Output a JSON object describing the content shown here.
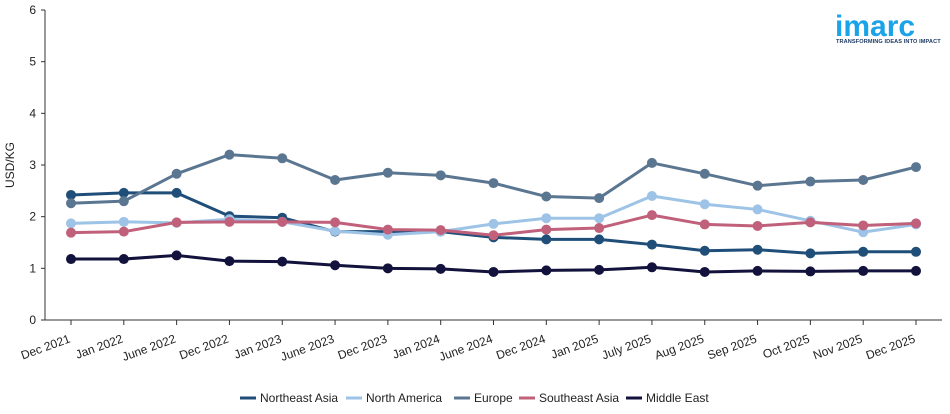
{
  "brand": {
    "name": "imarc",
    "tagline": "TRANSFORMING IDEAS INTO IMPACT",
    "color": "#1aa3e8"
  },
  "chart_data": {
    "type": "line",
    "title": "",
    "xlabel": "",
    "ylabel": "USD/KG",
    "ylim": [
      0,
      6
    ],
    "yticks": [
      0,
      1,
      2,
      3,
      4,
      5,
      6
    ],
    "grid": false,
    "legend_position": "bottom",
    "categories": [
      "Dec 2021",
      "Jan 2022",
      "June 2022",
      "Dec 2022",
      "Jan 2023",
      "June 2023",
      "Dec 2023",
      "Jan 2024",
      "June 2024",
      "Dec 2024",
      "Jan 2025",
      "July 2025",
      "Aug 2025",
      "Sep 2025",
      "Oct 2025",
      "Nov 2025",
      "Dec 2025"
    ],
    "series": [
      {
        "name": "Northeast Asia",
        "color": "#1f4e79",
        "values": [
          2.42,
          2.46,
          2.46,
          2.01,
          1.98,
          1.71,
          1.71,
          1.71,
          1.6,
          1.56,
          1.56,
          1.46,
          1.34,
          1.36,
          1.29,
          1.32,
          1.32
        ]
      },
      {
        "name": "North America",
        "color": "#9dc3e6",
        "values": [
          1.87,
          1.9,
          1.88,
          1.95,
          1.9,
          1.72,
          1.65,
          1.71,
          1.86,
          1.97,
          1.97,
          2.4,
          2.24,
          2.14,
          1.92,
          1.7,
          1.85
        ]
      },
      {
        "name": "Europe",
        "color": "#5b7691",
        "values": [
          2.26,
          2.3,
          2.83,
          3.2,
          3.13,
          2.71,
          2.85,
          2.8,
          2.65,
          2.39,
          2.36,
          3.04,
          2.83,
          2.6,
          2.68,
          2.71,
          2.96
        ]
      },
      {
        "name": "Southeast Asia",
        "color": "#c0607a",
        "values": [
          1.69,
          1.71,
          1.89,
          1.9,
          1.9,
          1.89,
          1.75,
          1.74,
          1.64,
          1.75,
          1.78,
          2.03,
          1.85,
          1.82,
          1.89,
          1.83,
          1.87
        ]
      },
      {
        "name": "Middle East",
        "color": "#12123c",
        "values": [
          1.18,
          1.18,
          1.25,
          1.14,
          1.13,
          1.06,
          1.0,
          0.99,
          0.93,
          0.96,
          0.97,
          1.02,
          0.93,
          0.95,
          0.94,
          0.95,
          0.95
        ]
      }
    ]
  }
}
